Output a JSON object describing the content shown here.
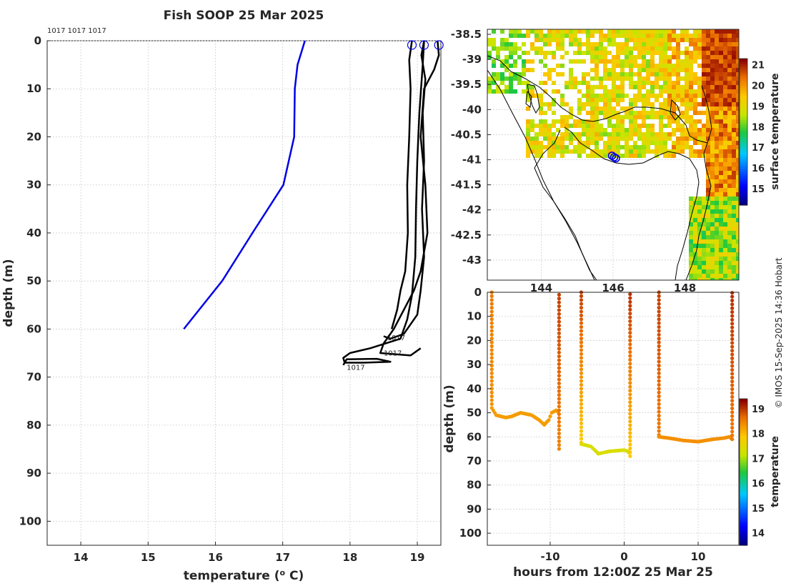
{
  "title": "Fish SOOP 25 Mar 2025",
  "credit": "© IMOS 15-Sep-2025 14:36 Hobart",
  "chart_data": [
    {
      "id": "profile",
      "type": "line",
      "xlabel": "temperature (° C)",
      "ylabel": "depth (m)",
      "xlim": [
        13.5,
        19.35
      ],
      "ylim": [
        105,
        0
      ],
      "xticks": [
        14,
        15,
        16,
        17,
        18,
        19
      ],
      "yticks": [
        0,
        10,
        20,
        30,
        40,
        50,
        60,
        70,
        80,
        90,
        100
      ],
      "grid": true,
      "top_labels": "1017 1017 1017",
      "climatology": {
        "color": "#0000e6",
        "points": [
          [
            17.33,
            0
          ],
          [
            17.22,
            5
          ],
          [
            17.18,
            10
          ],
          [
            17.17,
            20
          ],
          [
            17.01,
            30
          ],
          [
            16.55,
            40
          ],
          [
            16.1,
            50
          ],
          [
            15.53,
            60
          ]
        ]
      },
      "profiles": [
        {
          "color": "#000000",
          "label": "1017",
          "label_at": [
            18.55,
            62.3
          ],
          "points": [
            [
              19.1,
              0
            ],
            [
              19.06,
              3
            ],
            [
              19.12,
              8
            ],
            [
              19.08,
              15
            ],
            [
              19.1,
              25
            ],
            [
              19.07,
              35
            ],
            [
              19.1,
              45
            ],
            [
              19.05,
              52
            ],
            [
              19.0,
              57
            ],
            [
              18.8,
              61
            ],
            [
              18.6,
              62
            ],
            [
              18.5,
              61.5
            ]
          ]
        },
        {
          "color": "#000000",
          "label": "",
          "label_at": [
            0,
            0
          ],
          "points": [
            [
              18.92,
              0
            ],
            [
              18.88,
              4
            ],
            [
              18.9,
              10
            ],
            [
              18.88,
              20
            ],
            [
              18.85,
              30
            ],
            [
              18.86,
              40
            ],
            [
              18.82,
              48
            ],
            [
              18.75,
              52
            ],
            [
              18.7,
              56
            ],
            [
              18.62,
              60
            ]
          ]
        },
        {
          "color": "#000000",
          "label": "1017",
          "label_at": [
            18.5,
            65.5
          ],
          "points": [
            [
              19.3,
              0
            ],
            [
              19.32,
              3
            ],
            [
              19.25,
              6
            ],
            [
              19.1,
              10
            ],
            [
              19.05,
              20
            ],
            [
              19.12,
              30
            ],
            [
              19.15,
              40
            ],
            [
              19.05,
              48
            ],
            [
              18.95,
              52
            ],
            [
              18.8,
              56
            ],
            [
              18.65,
              60
            ],
            [
              18.5,
              63
            ],
            [
              18.45,
              65
            ],
            [
              18.9,
              65.5
            ],
            [
              19.05,
              64
            ]
          ]
        },
        {
          "color": "#000000",
          "label": "1017",
          "label_at": [
            17.95,
            68.5
          ],
          "points": [
            [
              19.1,
              0
            ],
            [
              19.08,
              5
            ],
            [
              19.03,
              15
            ],
            [
              19.0,
              25
            ],
            [
              18.98,
              35
            ],
            [
              18.97,
              45
            ],
            [
              18.92,
              53
            ],
            [
              18.85,
              58
            ],
            [
              18.75,
              62
            ],
            [
              18.3,
              64
            ],
            [
              18.0,
              65
            ],
            [
              17.9,
              66
            ],
            [
              17.92,
              67
            ],
            [
              18.2,
              67
            ],
            [
              18.6,
              66.8
            ],
            [
              18.4,
              66.2
            ],
            [
              17.95,
              66.3
            ],
            [
              17.9,
              67.5
            ]
          ]
        }
      ],
      "surface_markers": [
        [
          18.92,
          0
        ],
        [
          19.1,
          0
        ],
        [
          19.32,
          0
        ]
      ]
    },
    {
      "id": "map",
      "type": "heatmap",
      "xlim": [
        142.5,
        149.5
      ],
      "ylim": [
        -43.4,
        -38.4
      ],
      "xticks": [
        144,
        146,
        148
      ],
      "yticks": [
        -38.5,
        -39,
        -39.5,
        -40,
        -40.5,
        -41,
        -41.5,
        -42,
        -42.5,
        -43
      ],
      "ytick_labels": [
        "-38.5",
        "-39",
        "-39.5",
        "-40",
        "-40.5",
        "-41",
        "-41.5",
        "-42",
        "-42.5",
        "-43"
      ],
      "xtick_labels": [
        "144",
        "146",
        "148"
      ],
      "colorbar": {
        "label": "surface temperature",
        "range": [
          14.2,
          21.3
        ],
        "ticks": [
          15,
          16,
          17,
          18,
          19,
          20,
          21
        ]
      },
      "markers": [
        [
          145.97,
          -40.92
        ],
        [
          146.03,
          -40.95
        ],
        [
          146.08,
          -40.97
        ]
      ]
    },
    {
      "id": "timeseries",
      "type": "scatter",
      "xlabel": "hours from 12:00Z 25 Mar 25",
      "ylabel": "depth (m)",
      "xlim": [
        -18.5,
        15.5
      ],
      "ylim": [
        105,
        0
      ],
      "xticks": [
        -10,
        0,
        10
      ],
      "yticks": [
        0,
        10,
        20,
        30,
        40,
        50,
        60,
        70,
        80,
        90,
        100
      ],
      "colorbar": {
        "label": "temperature",
        "range": [
          13.5,
          19.4
        ],
        "ticks": [
          14,
          15,
          16,
          17,
          18,
          19
        ]
      },
      "segments": [
        {
          "down": [
            -17.9,
            0,
            48,
            18.6
          ],
          "bottom": [
            [
              -17.9,
              48
            ],
            [
              -17.3,
              51
            ],
            [
              -16,
              52
            ],
            [
              -15.2,
              51.5
            ],
            [
              -14,
              50
            ],
            [
              -12.5,
              51
            ],
            [
              -11.5,
              53
            ],
            [
              -10.8,
              55
            ],
            [
              -10.2,
              53
            ],
            [
              -9.8,
              50
            ],
            [
              -9.2,
              49
            ],
            [
              -8.8,
              50
            ]
          ],
          "up": [
            -8.8,
            65,
            0,
            19.0
          ],
          "bottom_temp": 18.3
        },
        {
          "down": [
            -5.8,
            0,
            63,
            19.0
          ],
          "bottom": [
            [
              -5.8,
              63
            ],
            [
              -4.5,
              64
            ],
            [
              -3.8,
              66
            ],
            [
              -3.5,
              67
            ],
            [
              -2,
              66
            ],
            [
              0,
              65.5
            ],
            [
              0.5,
              66
            ],
            [
              0.7,
              67
            ]
          ],
          "up": [
            0.8,
            68,
            0,
            19.1
          ],
          "bottom_temp": 17.4
        },
        {
          "down": [
            4.7,
            0,
            60,
            19.0
          ],
          "bottom": [
            [
              4.7,
              60
            ],
            [
              6,
              60.5
            ],
            [
              8,
              61.5
            ],
            [
              10,
              62
            ],
            [
              12,
              61
            ],
            [
              13.5,
              60.5
            ],
            [
              14.2,
              60
            ],
            [
              14.6,
              61
            ]
          ],
          "up": [
            14.6,
            61,
            0,
            19.1
          ],
          "bottom_temp": 18.4
        }
      ]
    }
  ]
}
